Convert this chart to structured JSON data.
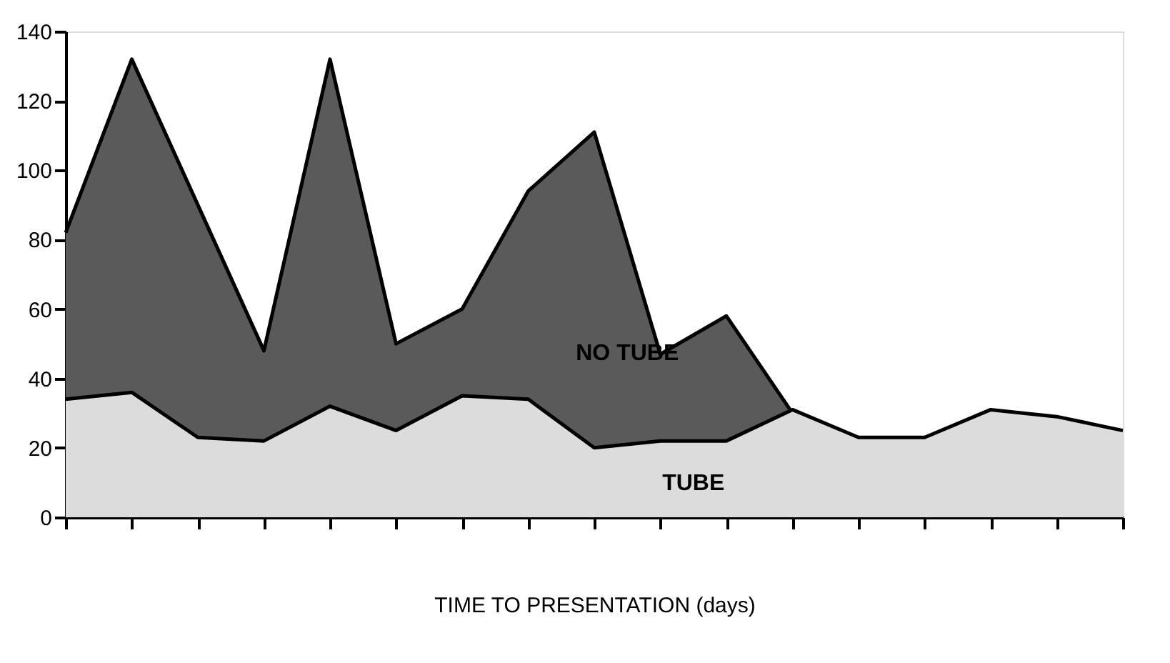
{
  "chart_data": {
    "type": "area",
    "xlabel": "TIME TO PRESENTATION (days)",
    "categories": [
      null,
      null,
      null,
      null,
      null,
      null,
      null,
      null,
      null,
      null,
      null,
      null,
      null,
      null,
      null,
      null,
      null
    ],
    "series": [
      {
        "name": "NO TUBE",
        "color": "#5a5a5a",
        "values": [
          82,
          132,
          90,
          48,
          132,
          50,
          60,
          94,
          111,
          47,
          58,
          30,
          null,
          null,
          null,
          null,
          null
        ]
      },
      {
        "name": "TUBE",
        "color": "#dcdcdc",
        "values": [
          34,
          36,
          23,
          22,
          32,
          25,
          35,
          34,
          20,
          22,
          22,
          31,
          23,
          23,
          31,
          29,
          25
        ]
      }
    ],
    "ylim": [
      0,
      140
    ],
    "yticks": [
      0,
      20,
      40,
      60,
      80,
      100,
      120,
      140
    ],
    "grid": false,
    "legend": false,
    "tick_labels": "y"
  }
}
